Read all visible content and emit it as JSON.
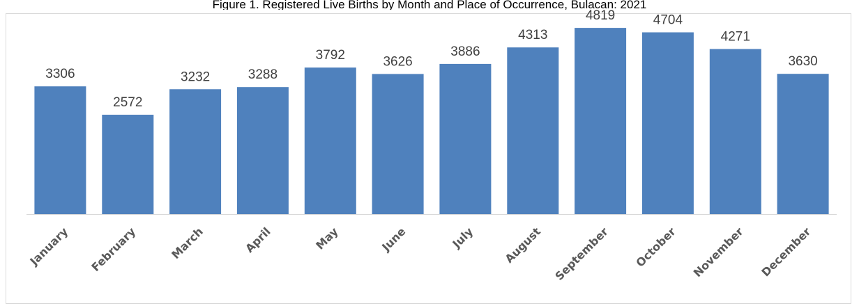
{
  "chart_data": {
    "type": "bar",
    "title": "Figure 1. Registered Live Births by Month and Place of Occurrence, Bulacan: 2021",
    "categories": [
      "January",
      "February",
      "March",
      "April",
      "May",
      "June",
      "July",
      "August",
      "September",
      "October",
      "November",
      "December"
    ],
    "values": [
      3306,
      2572,
      3232,
      3288,
      3792,
      3626,
      3886,
      4313,
      4819,
      4704,
      4271,
      3630
    ],
    "data_labels": [
      "3306",
      "2572",
      "3232",
      "3288",
      "3792",
      "3626",
      "3886",
      "4313",
      "4819",
      "4704",
      "4271",
      "3630"
    ],
    "ylim": [
      0,
      5000
    ],
    "grid": false,
    "legend": "none",
    "bar_color": "#4f81bd",
    "axis_color": "#d9d9d9",
    "label_color": "#404040",
    "tick_color": "#595959"
  }
}
